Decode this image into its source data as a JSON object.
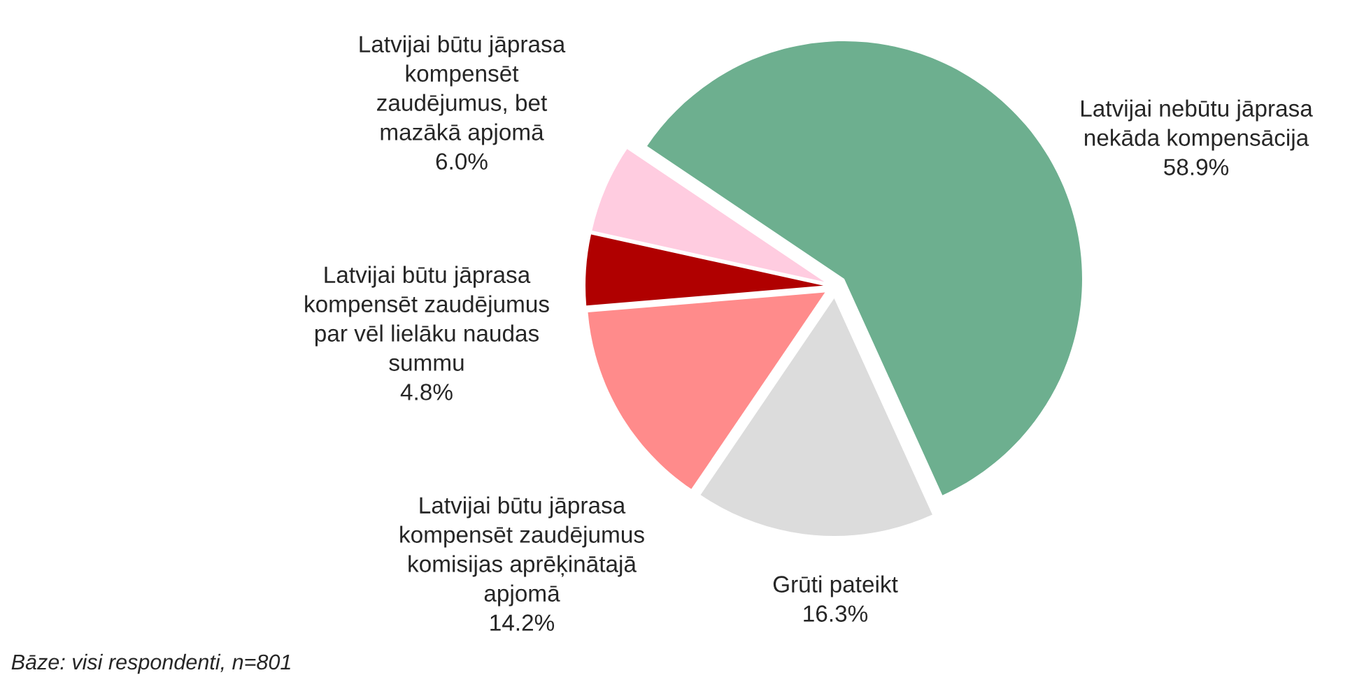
{
  "chart_data": {
    "type": "pie",
    "categories": [
      "Latvijai nebūtu jāprasa\nnekāda kompensācija",
      "Grūti pateikt",
      "Latvijai būtu jāprasa\nkompensēt zaudējumus\nkomisijas aprēķinātajā\napjomā",
      "Latvijai būtu jāprasa\nkompensēt zaudējumus\npar vēl lielāku naudas\nsummu",
      "Latvijai būtu jāprasa\nkompensēt\nzaudējumus, bet\nmazākā apjomā"
    ],
    "values": [
      58.9,
      16.3,
      14.2,
      4.8,
      6.0
    ],
    "colors": [
      "#6daf8f",
      "#dcdcdc",
      "#ff8b8b",
      "#b00000",
      "#ffcce0"
    ],
    "value_labels": [
      "58.9%",
      "16.3%",
      "14.2%",
      "4.8%",
      "6.0%"
    ],
    "annotations": [
      "Bāze: visi respondenti, n=801"
    ]
  }
}
